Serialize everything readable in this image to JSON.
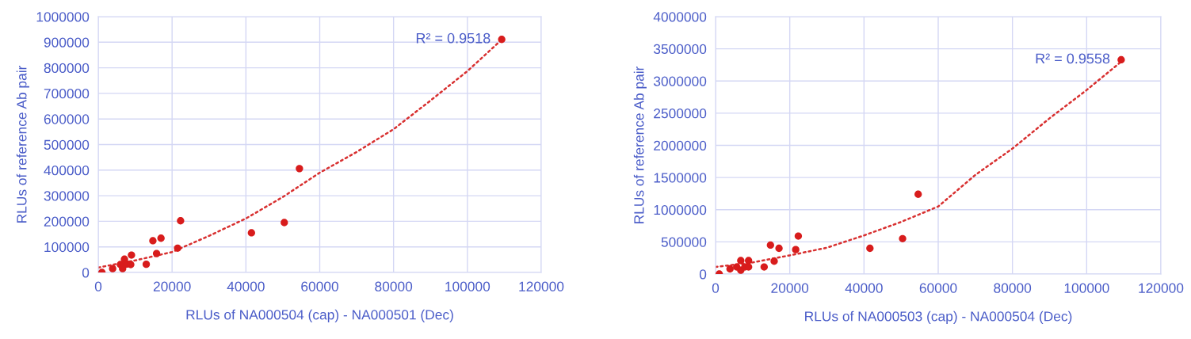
{
  "chart_data": [
    {
      "type": "scatter",
      "xlabel": "RLUs of NA000504 (cap) - NA000501 (Dec)",
      "ylabel": "RLUs of reference Ab pair",
      "xlim": [
        0,
        120000
      ],
      "xticks": [
        0,
        20000,
        40000,
        60000,
        80000,
        100000,
        120000
      ],
      "ylim": [
        0,
        1000000
      ],
      "yticks": [
        0,
        100000,
        200000,
        300000,
        400000,
        500000,
        600000,
        700000,
        800000,
        900000,
        1000000
      ],
      "grid": true,
      "legend": false,
      "annotations": [
        {
          "text": "R² = 0.9518",
          "x": 109300,
          "y": 911000
        }
      ],
      "series": [
        {
          "marker": "circle",
          "color": "#d81c1c",
          "x": [
            1000,
            3900,
            6000,
            6600,
            7100,
            7700,
            8800,
            9000,
            13000,
            14800,
            15800,
            17000,
            21500,
            22300,
            41500,
            50400,
            54500,
            109300
          ],
          "values": [
            0,
            15000,
            31000,
            15000,
            52000,
            33000,
            31000,
            68000,
            32000,
            124000,
            74000,
            134000,
            95000,
            202000,
            155000,
            195000,
            406000,
            911000
          ]
        },
        {
          "type": "line",
          "marker": "none",
          "line_style": "dotted",
          "color": "#d83030",
          "x": [
            0,
            10000,
            20000,
            30000,
            40000,
            50000,
            60000,
            70000,
            80000,
            90000,
            100000,
            109300
          ],
          "values": [
            19000,
            47000,
            80000,
            143000,
            211000,
            295000,
            390000,
            471000,
            560000,
            672000,
            787000,
            910000
          ]
        }
      ]
    },
    {
      "type": "scatter",
      "xlabel": "RLUs of NA000503 (cap) - NA000504 (Dec)",
      "ylabel": "RLUs of reference Ab pair",
      "xlim": [
        0,
        120000
      ],
      "xticks": [
        0,
        20000,
        40000,
        60000,
        80000,
        100000,
        120000
      ],
      "ylim": [
        0,
        4000000
      ],
      "yticks": [
        0,
        500000,
        1000000,
        1500000,
        2000000,
        2500000,
        3000000,
        3500000,
        4000000
      ],
      "grid": true,
      "legend": false,
      "annotations": [
        {
          "text": "R² = 0.9558",
          "x": 109300,
          "y": 3330000
        }
      ],
      "series": [
        {
          "marker": "circle",
          "color": "#d81c1c",
          "x": [
            1000,
            3900,
            5700,
            6800,
            6800,
            7900,
            8900,
            8900,
            13100,
            14800,
            15800,
            17100,
            21600,
            22300,
            41600,
            50400,
            54600,
            109300
          ],
          "values": [
            0,
            80000,
            110000,
            210000,
            60000,
            110000,
            210000,
            110000,
            110000,
            450000,
            200000,
            400000,
            380000,
            590000,
            400000,
            550000,
            1240000,
            3330000
          ]
        },
        {
          "type": "line",
          "marker": "none",
          "line_style": "dotted",
          "color": "#d83030",
          "x": [
            0,
            10000,
            20000,
            30000,
            40000,
            50000,
            60000,
            70000,
            80000,
            90000,
            100000,
            109300
          ],
          "values": [
            110000,
            180000,
            290000,
            410000,
            600000,
            810000,
            1050000,
            1540000,
            1950000,
            2420000,
            2860000,
            3300000
          ]
        }
      ]
    }
  ]
}
